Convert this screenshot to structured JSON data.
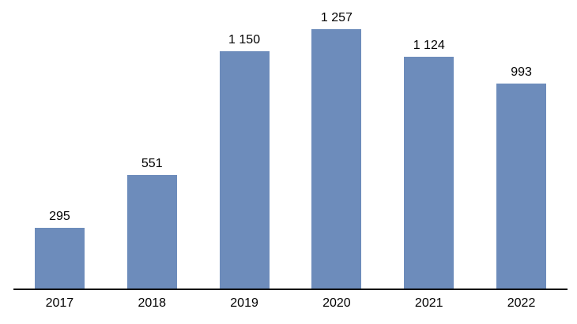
{
  "chart_data": {
    "type": "bar",
    "categories": [
      "2017",
      "2018",
      "2019",
      "2020",
      "2021",
      "2022"
    ],
    "values": [
      295,
      551,
      1150,
      1257,
      1124,
      993
    ],
    "value_labels": [
      "295",
      "551",
      "1 150",
      "1 257",
      "1 124",
      "993"
    ],
    "xlabel": "",
    "ylabel": "",
    "ylim": [
      0,
      1400
    ],
    "grid": false,
    "legend": false,
    "data_labels_shown": true,
    "bar_color": "#6d8cbb",
    "axis_line_color": "#000000",
    "label_color": "#000000",
    "background_color": "#ffffff"
  }
}
